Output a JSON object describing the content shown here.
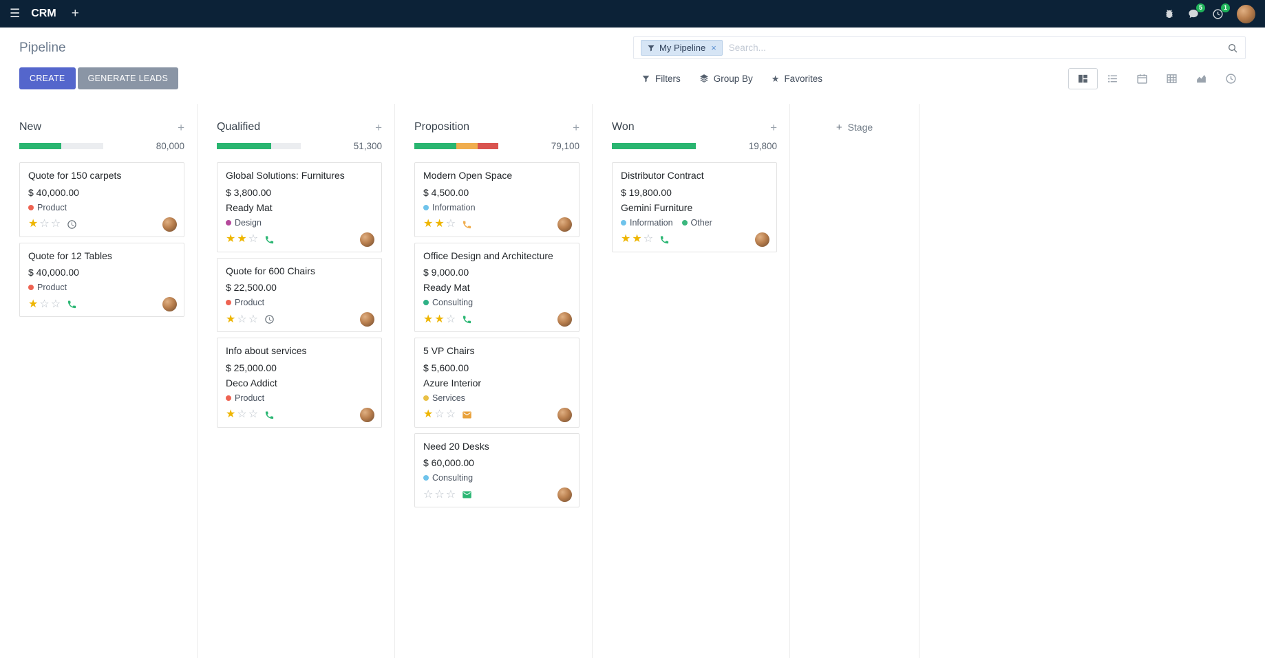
{
  "theme": {
    "topbar_bg": "#0c2237",
    "accent": "#5466cc",
    "secondary_btn": "#8a95a5",
    "badge": "#1fb25a",
    "star_filled": "#eeb500",
    "facet_bg": "#d6e5f5",
    "facet_border": "#bad0e8",
    "progress_track": "#ebedf0"
  },
  "topbar": {
    "app_name": "CRM",
    "message_badge": "5",
    "activity_badge": "1"
  },
  "control_panel": {
    "breadcrumb": "Pipeline",
    "search": {
      "facet_label": "My Pipeline",
      "placeholder": "Search..."
    },
    "create_label": "CREATE",
    "generate_leads_label": "GENERATE LEADS",
    "filters_label": "Filters",
    "group_by_label": "Group By",
    "favorites_label": "Favorites",
    "view_switcher": {
      "active": "kanban",
      "views": [
        "kanban",
        "list",
        "calendar",
        "pivot",
        "graph",
        "activity"
      ]
    }
  },
  "board": {
    "add_stage_label": "Stage",
    "columns": [
      {
        "name": "New",
        "counter": "80,000",
        "progress": [
          {
            "color": "#29b570",
            "pct": 50
          }
        ],
        "cards": [
          {
            "title": "Quote for 150 carpets",
            "amount": "$ 40,000.00",
            "partner": "",
            "tags": [
              {
                "label": "Product",
                "color": "#ee6352"
              }
            ],
            "stars": 1,
            "activity": {
              "type": "clock",
              "color": "#6c757d"
            }
          },
          {
            "title": "Quote for 12 Tables",
            "amount": "$ 40,000.00",
            "partner": "",
            "tags": [
              {
                "label": "Product",
                "color": "#ee6352"
              }
            ],
            "stars": 1,
            "activity": {
              "type": "phone",
              "color": "#2bb673"
            }
          }
        ]
      },
      {
        "name": "Qualified",
        "counter": "51,300",
        "progress": [
          {
            "color": "#29b570",
            "pct": 65
          }
        ],
        "cards": [
          {
            "title": "Global Solutions: Furnitures",
            "amount": "$ 3,800.00",
            "partner": "Ready Mat",
            "tags": [
              {
                "label": "Design",
                "color": "#b5499b"
              }
            ],
            "stars": 2,
            "activity": {
              "type": "phone",
              "color": "#2bb673"
            }
          },
          {
            "title": "Quote for 600 Chairs",
            "amount": "$ 22,500.00",
            "partner": "",
            "tags": [
              {
                "label": "Product",
                "color": "#ee6352"
              }
            ],
            "stars": 1,
            "activity": {
              "type": "clock",
              "color": "#6c757d"
            }
          },
          {
            "title": "Info about services",
            "amount": "$ 25,000.00",
            "partner": "Deco Addict",
            "tags": [
              {
                "label": "Product",
                "color": "#ee6352"
              }
            ],
            "stars": 1,
            "activity": {
              "type": "phone",
              "color": "#2bb673"
            }
          }
        ]
      },
      {
        "name": "Proposition",
        "counter": "79,100",
        "progress": [
          {
            "color": "#29b570",
            "pct": 50
          },
          {
            "color": "#f0ad4e",
            "pct": 25
          },
          {
            "color": "#d9534f",
            "pct": 25
          }
        ],
        "cards": [
          {
            "title": "Modern Open Space",
            "amount": "$ 4,500.00",
            "partner": "",
            "tags": [
              {
                "label": "Information",
                "color": "#6fc3eb"
              }
            ],
            "stars": 2,
            "activity": {
              "type": "phone",
              "color": "#f0ad4e"
            }
          },
          {
            "title": "Office Design and Architecture",
            "amount": "$ 9,000.00",
            "partner": "Ready Mat",
            "tags": [
              {
                "label": "Consulting",
                "color": "#2fb186"
              }
            ],
            "stars": 2,
            "activity": {
              "type": "phone",
              "color": "#2bb673"
            }
          },
          {
            "title": "5 VP Chairs",
            "amount": "$ 5,600.00",
            "partner": "Azure Interior",
            "tags": [
              {
                "label": "Services",
                "color": "#e9c046"
              }
            ],
            "stars": 1,
            "activity": {
              "type": "envelope",
              "color": "#e9a13a"
            }
          },
          {
            "title": "Need 20 Desks",
            "amount": "$ 60,000.00",
            "partner": "",
            "tags": [
              {
                "label": "Consulting",
                "color": "#6fc3eb"
              }
            ],
            "stars": 0,
            "activity": {
              "type": "envelope",
              "color": "#2bb673"
            }
          }
        ]
      },
      {
        "name": "Won",
        "counter": "19,800",
        "progress": [
          {
            "color": "#29b570",
            "pct": 100
          }
        ],
        "cards": [
          {
            "title": "Distributor Contract",
            "amount": "$ 19,800.00",
            "partner": "Gemini Furniture",
            "tags": [
              {
                "label": "Information",
                "color": "#6fc3eb"
              },
              {
                "label": "Other",
                "color": "#3bb77e"
              }
            ],
            "stars": 2,
            "activity": {
              "type": "phone",
              "color": "#2bb673"
            }
          }
        ]
      }
    ]
  }
}
